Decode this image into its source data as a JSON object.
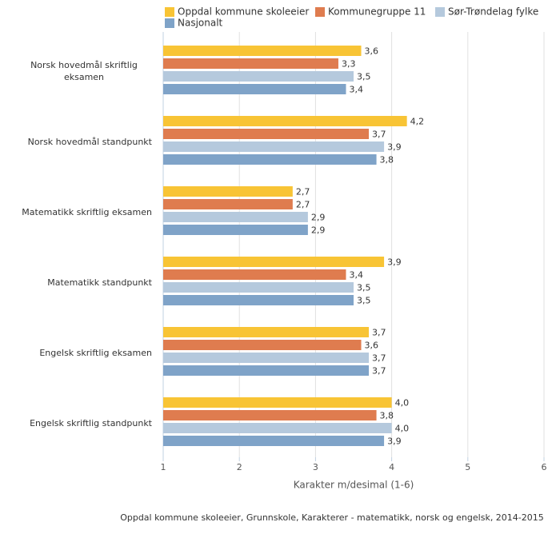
{
  "chart_data": {
    "type": "bar",
    "orientation": "horizontal",
    "x_label": "Karakter m/desimal (1-6)",
    "caption": "Oppdal kommune skoleeier, Grunnskole, Karakterer - matematikk, norsk og engelsk, 2014-2015",
    "categories": [
      "Norsk hovedmål skriftlig eksamen",
      "Norsk hovedmål standpunkt",
      "Matematikk skriftlig eksamen",
      "Matematikk standpunkt",
      "Engelsk skriftlig eksamen",
      "Engelsk skriftlig standpunkt"
    ],
    "series": [
      {
        "name": "Oppdal kommune skoleeier",
        "color": "#f8c435",
        "values": [
          3.6,
          4.2,
          2.7,
          3.9,
          3.7,
          4.0
        ],
        "value_labels": [
          "3,6",
          "4,2",
          "2,7",
          "3,9",
          "3,7",
          "4,0"
        ]
      },
      {
        "name": "Kommunegruppe 11",
        "color": "#df7c4f",
        "values": [
          3.3,
          3.7,
          2.7,
          3.4,
          3.6,
          3.8
        ],
        "value_labels": [
          "3,3",
          "3,7",
          "2,7",
          "3,4",
          "3,6",
          "3,8"
        ]
      },
      {
        "name": "Sør-Trøndelag fylke",
        "color": "#b5c9dd",
        "values": [
          3.5,
          3.9,
          2.9,
          3.5,
          3.7,
          4.0
        ],
        "value_labels": [
          "3,5",
          "3,9",
          "2,9",
          "3,5",
          "3,7",
          "4,0"
        ]
      },
      {
        "name": "Nasjonalt",
        "color": "#7fa3c8",
        "values": [
          3.4,
          3.8,
          2.9,
          3.5,
          3.7,
          3.9
        ],
        "value_labels": [
          "3,4",
          "3,8",
          "2,9",
          "3,5",
          "3,7",
          "3,9"
        ]
      }
    ],
    "xlim": [
      1,
      6
    ],
    "xticks": [
      1,
      2,
      3,
      4,
      5,
      6
    ],
    "grid": true
  }
}
